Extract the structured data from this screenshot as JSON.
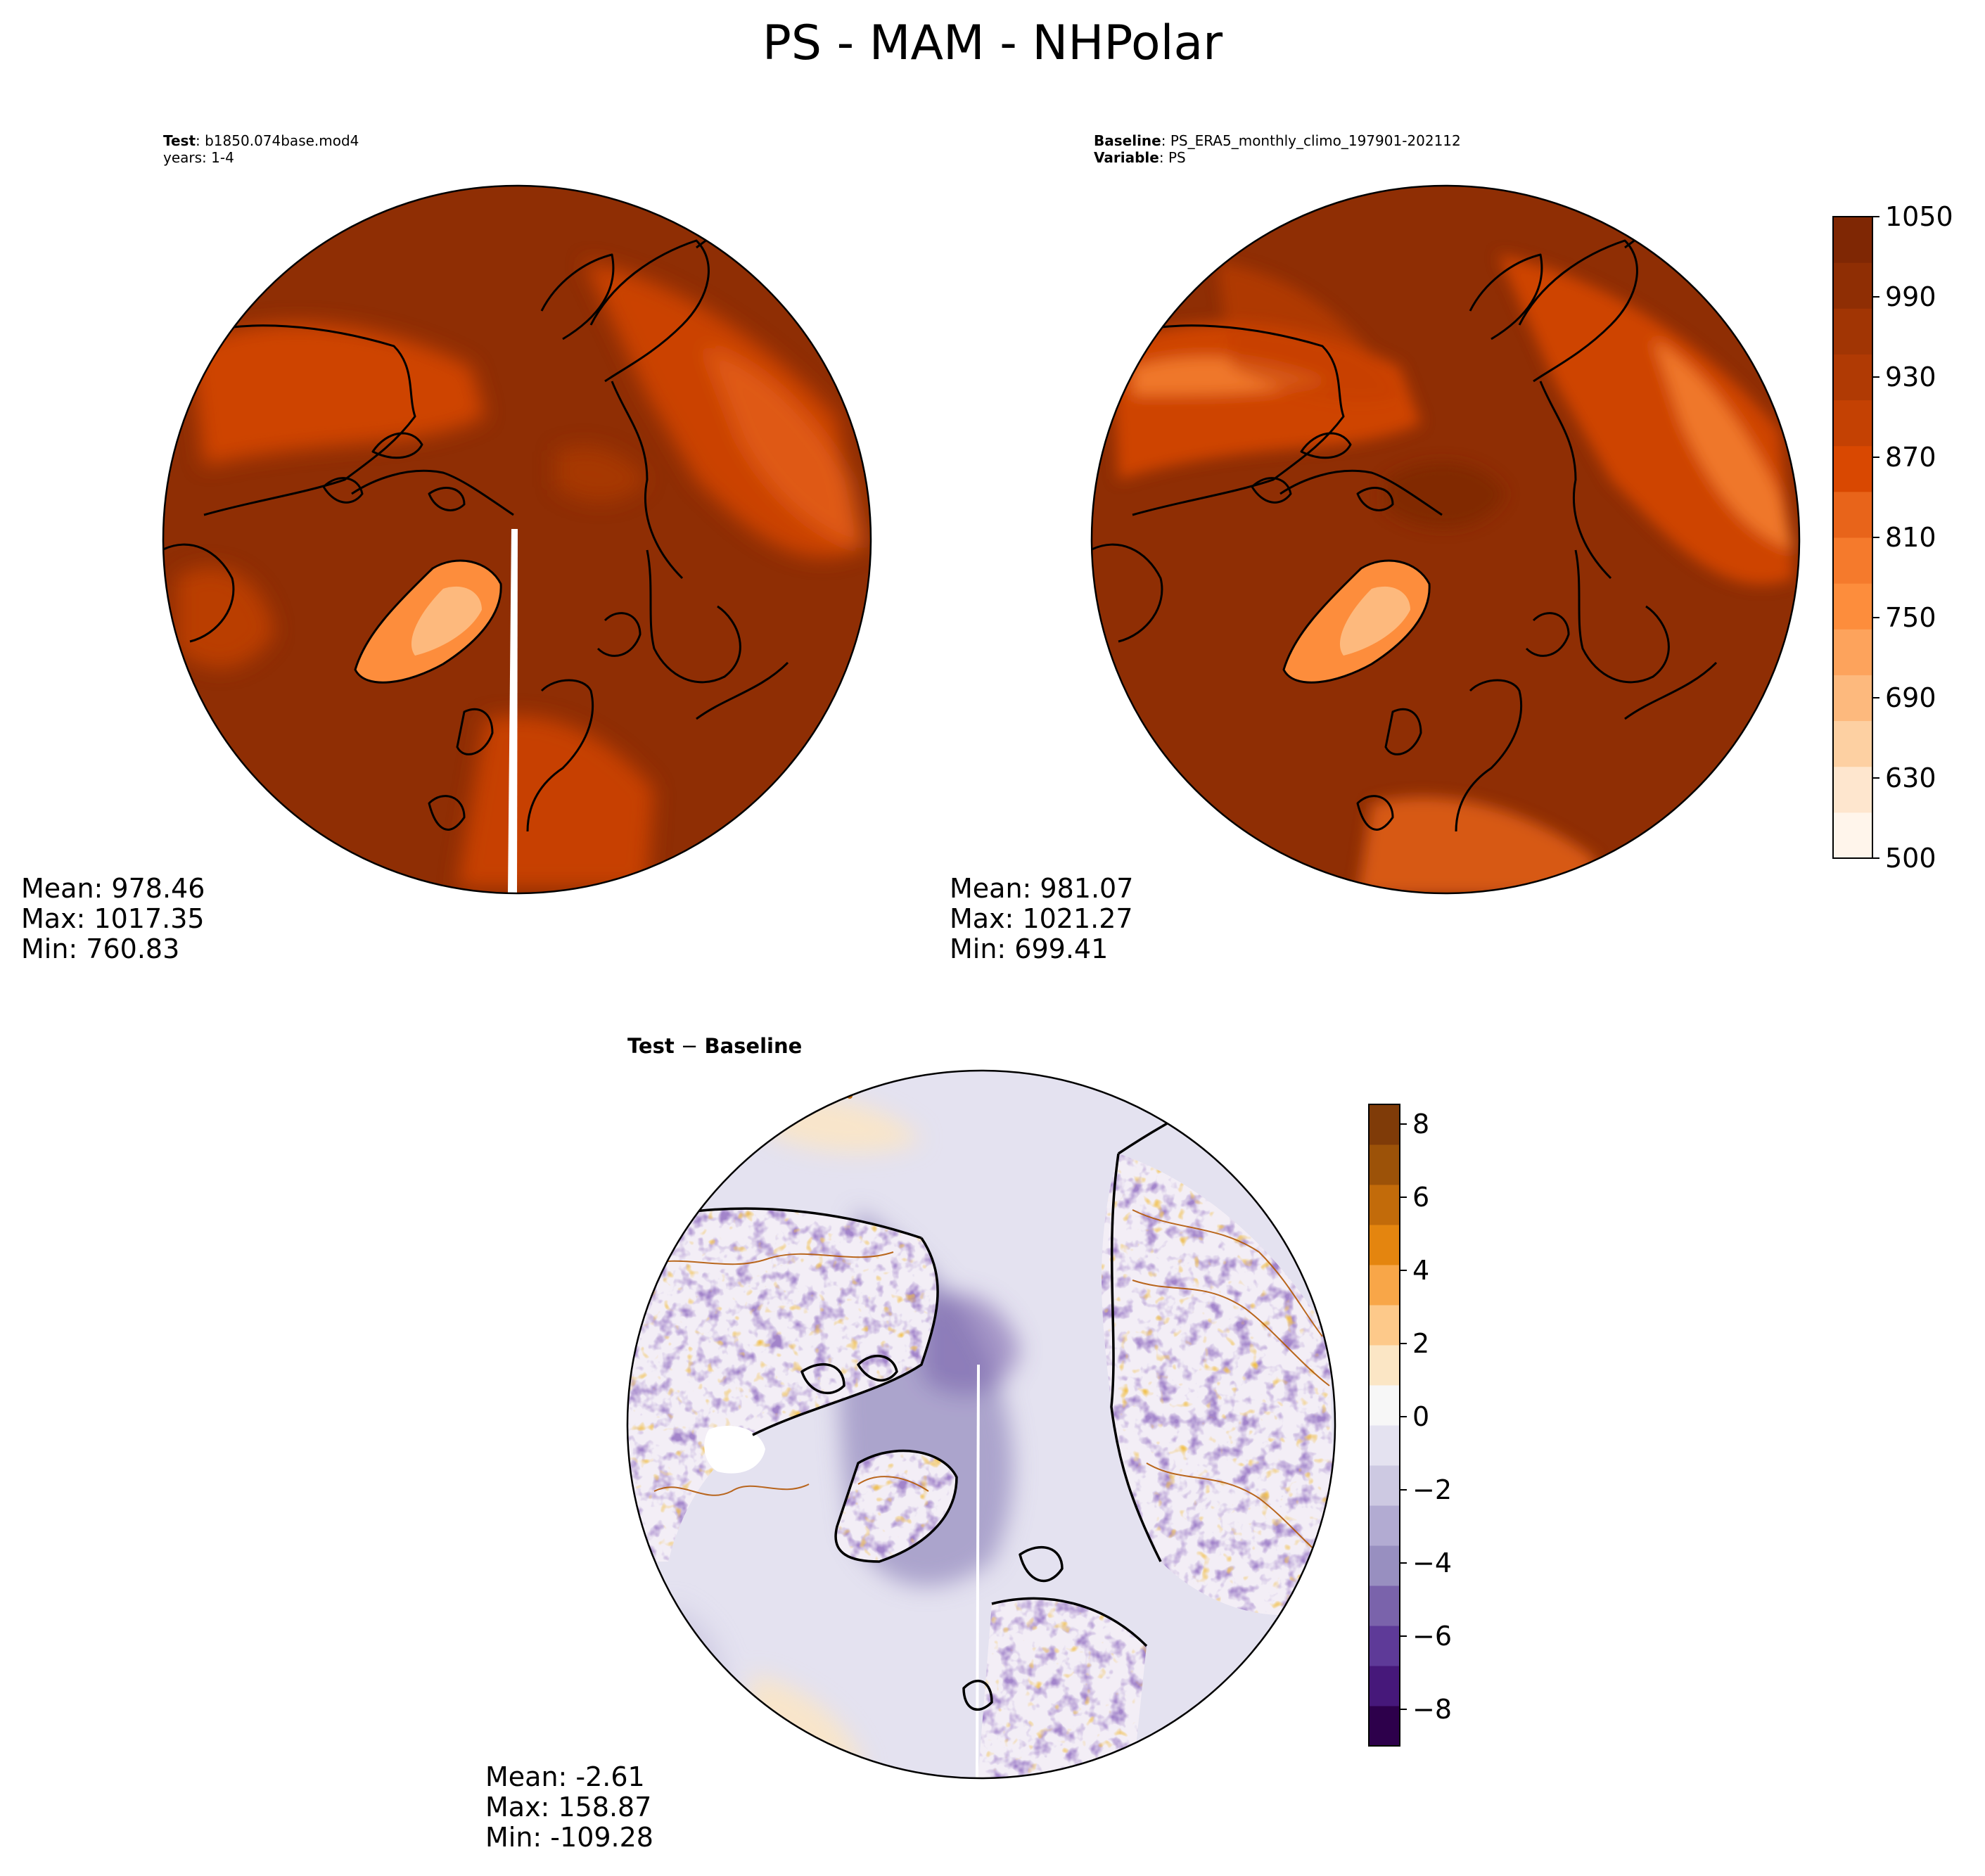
{
  "figure": {
    "title": "PS - MAM - NHPolar"
  },
  "test_panel": {
    "header_line1_bold": "Test",
    "header_line1_rest": ": b1850.074base.mod4",
    "header_line2": "years: 1-4",
    "stats": {
      "mean": "Mean: 978.46",
      "max": "Max: 1017.35",
      "min": "Min: 760.83"
    }
  },
  "baseline_panel": {
    "header_line1_bold": "Baseline",
    "header_line1_rest": ": PS_ERA5_monthly_climo_197901-202112",
    "header_line2_bold": "Variable",
    "header_line2_rest": ": PS",
    "stats": {
      "mean": "Mean: 981.07",
      "max": "Max: 1021.27",
      "min": "Min: 699.41"
    }
  },
  "diff_panel": {
    "title_a": "Test",
    "title_op": " − ",
    "title_b": "Baseline",
    "stats": {
      "mean": "Mean: -2.61",
      "max": "Max: 158.87",
      "min": "Min: -109.28"
    }
  },
  "colorbars": {
    "main": {
      "ticks": [
        "1050",
        "990",
        "930",
        "870",
        "810",
        "750",
        "690",
        "630",
        "500"
      ],
      "colors": [
        "#fff5eb",
        "#fee6ce",
        "#fdd0a2",
        "#fdb97d",
        "#fda35c",
        "#fd8d3c",
        "#f57a2c",
        "#e8641a",
        "#d94801",
        "#c44103",
        "#b03a04",
        "#a13504",
        "#8f2e04",
        "#7f2704"
      ]
    },
    "diff": {
      "ticks": [
        "8",
        "6",
        "4",
        "2",
        "0",
        "−2",
        "−4",
        "−6",
        "−8"
      ],
      "colors": [
        "#2d004b",
        "#46187a",
        "#5e3a98",
        "#7a63ab",
        "#988fc0",
        "#b2abd2",
        "#cdc9e2",
        "#e4e2f0",
        "#f7f7f7",
        "#fbe6c5",
        "#fdc98a",
        "#f8a648",
        "#e4850f",
        "#c26b0a",
        "#9c5208",
        "#7f3b08"
      ]
    }
  }
}
